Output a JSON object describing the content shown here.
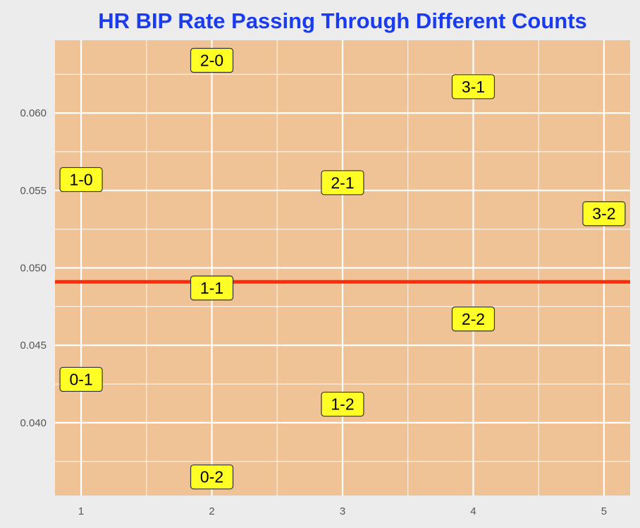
{
  "chart_data": {
    "type": "scatter",
    "title": "HR BIP Rate Passing Through Different Counts",
    "xlabel": "",
    "ylabel": "",
    "xlim": [
      0.8,
      5.2
    ],
    "ylim": [
      0.0353,
      0.0647
    ],
    "x_ticks": [
      "1",
      "2",
      "3",
      "4",
      "5"
    ],
    "y_ticks": [
      "0.040",
      "0.045",
      "0.050",
      "0.055",
      "0.060"
    ],
    "grid": true,
    "points": [
      {
        "label": "1-0",
        "x": 1,
        "y": 0.0557
      },
      {
        "label": "0-1",
        "x": 1,
        "y": 0.0428
      },
      {
        "label": "2-0",
        "x": 2,
        "y": 0.0634
      },
      {
        "label": "1-1",
        "x": 2,
        "y": 0.0487
      },
      {
        "label": "0-2",
        "x": 2,
        "y": 0.0365
      },
      {
        "label": "2-1",
        "x": 3,
        "y": 0.0555
      },
      {
        "label": "1-2",
        "x": 3,
        "y": 0.0412
      },
      {
        "label": "3-1",
        "x": 4,
        "y": 0.0617
      },
      {
        "label": "2-2",
        "x": 4,
        "y": 0.0467
      },
      {
        "label": "3-2",
        "x": 5,
        "y": 0.0535
      }
    ],
    "reference_line": {
      "y": 0.0491,
      "color": "#ff2a0a"
    },
    "colors": {
      "panel": "#f0c397",
      "grid": "#ffffff",
      "label_fill": "#ffff26",
      "label_border": "#333333",
      "title": "#1a3cf0"
    }
  }
}
